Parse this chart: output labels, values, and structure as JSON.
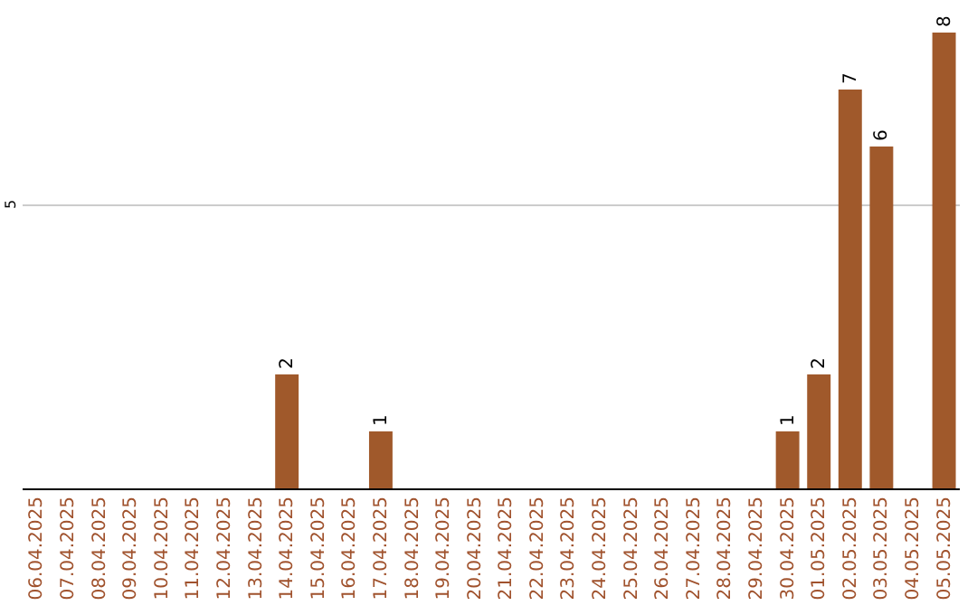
{
  "chart_data": {
    "type": "bar",
    "categories": [
      "06.04.2025",
      "07.04.2025",
      "08.04.2025",
      "09.04.2025",
      "10.04.2025",
      "11.04.2025",
      "12.04.2025",
      "13.04.2025",
      "14.04.2025",
      "15.04.2025",
      "16.04.2025",
      "17.04.2025",
      "18.04.2025",
      "19.04.2025",
      "20.04.2025",
      "21.04.2025",
      "22.04.2025",
      "23.04.2025",
      "24.04.2025",
      "25.04.2025",
      "26.04.2025",
      "27.04.2025",
      "28.04.2025",
      "29.04.2025",
      "30.04.2025",
      "01.05.2025",
      "02.05.2025",
      "03.05.2025",
      "04.05.2025",
      "05.05.2025"
    ],
    "values": [
      null,
      null,
      null,
      null,
      null,
      null,
      null,
      null,
      2,
      null,
      null,
      1,
      null,
      null,
      null,
      null,
      null,
      null,
      null,
      null,
      null,
      null,
      null,
      null,
      1,
      2,
      7,
      6,
      null,
      8
    ],
    "color": "#a0592b",
    "ylim": [
      0,
      8
    ],
    "yticks": [
      5
    ],
    "grid": "y",
    "data_labels": true
  }
}
